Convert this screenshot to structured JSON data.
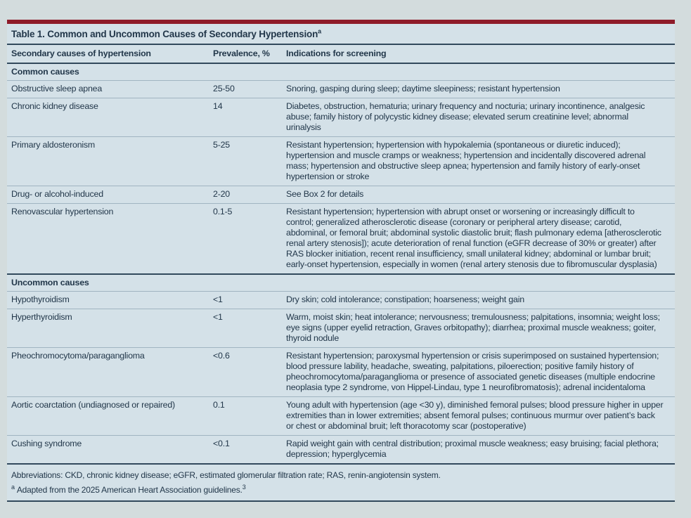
{
  "table": {
    "title": "Table 1. Common and Uncommon Causes of Secondary Hypertension",
    "title_superscript": "a",
    "columns": [
      "Secondary causes of hypertension",
      "Prevalence, %",
      "Indications for screening"
    ],
    "sections": [
      {
        "label": "Common causes",
        "rows": [
          {
            "cause": "Obstructive sleep apnea",
            "prevalence": "25-50",
            "indications": "Snoring, gasping during sleep; daytime sleepiness; resistant hypertension"
          },
          {
            "cause": "Chronic kidney disease",
            "prevalence": "14",
            "indications": "Diabetes, obstruction, hematuria; urinary frequency and nocturia; urinary incontinence, analgesic abuse; family history of polycystic kidney disease; elevated serum creatinine level; abnormal urinalysis"
          },
          {
            "cause": "Primary aldosteronism",
            "prevalence": "5-25",
            "indications": "Resistant hypertension; hypertension with hypokalemia (spontaneous or diuretic induced); hypertension and muscle cramps or weakness; hypertension and incidentally discovered adrenal mass; hypertension and obstructive sleep apnea; hypertension and family history of early-onset hypertension or stroke"
          },
          {
            "cause": "Drug- or alcohol-induced",
            "prevalence": "2-20",
            "indications": "See Box 2 for details"
          },
          {
            "cause": "Renovascular hypertension",
            "prevalence": "0.1-5",
            "indications": "Resistant hypertension; hypertension with abrupt onset or worsening or increasingly difficult to control; generalized atherosclerotic disease (coronary or peripheral artery disease; carotid, abdominal, or femoral bruit; abdominal systolic diastolic bruit; flash pulmonary edema [atherosclerotic renal artery stenosis]); acute deterioration of renal function (eGFR decrease of 30% or greater) after RAS blocker initiation, recent renal insufficiency, small unilateral kidney; abdominal or lumbar bruit; early-onset hypertension, especially in women (renal artery stenosis due to fibromuscular dysplasia)"
          }
        ]
      },
      {
        "label": "Uncommon causes",
        "rows": [
          {
            "cause": "Hypothyroidism",
            "prevalence": "<1",
            "indications": "Dry skin; cold intolerance; constipation; hoarseness; weight gain"
          },
          {
            "cause": "Hyperthyroidism",
            "prevalence": "<1",
            "indications": "Warm, moist skin; heat intolerance; nervousness; tremulousness; palpitations, insomnia; weight loss; eye signs (upper eyelid retraction, Graves orbitopathy); diarrhea; proximal muscle weakness; goiter, thyroid nodule"
          },
          {
            "cause": "Pheochromocytoma/paraganglioma",
            "prevalence": "<0.6",
            "indications": "Resistant hypertension; paroxysmal hypertension or crisis superimposed on sustained hypertension; blood pressure lability, headache, sweating, palpitations, piloerection; positive family history of pheochromocytoma/paraganglioma or presence of associated genetic diseases (multiple endocrine neoplasia type 2 syndrome, von Hippel-Lindau, type 1 neurofibromatosis); adrenal incidentaloma"
          },
          {
            "cause": "Aortic coarctation (undiagnosed or repaired)",
            "prevalence": "0.1",
            "indications": "Young adult with hypertension (age <30 y), diminished femoral pulses; blood pressure higher in upper extremities than in lower extremities; absent femoral pulses; continuous murmur over patient’s back or chest or abdominal bruit; left thoracotomy scar (postoperative)"
          },
          {
            "cause": "Cushing syndrome",
            "prevalence": "<0.1",
            "indications": "Rapid weight gain with central distribution; proximal muscle weakness; easy bruising; facial plethora; depression; hyperglycemia"
          }
        ]
      }
    ],
    "footnotes": {
      "abbreviations": "Abbreviations: CKD, chronic kidney disease; eGFR, estimated glomerular filtration rate; RAS, renin-angiotensin system.",
      "footnote_a_marker": "a",
      "footnote_a_text": "Adapted from the 2025 American Heart Association guidelines.",
      "footnote_a_reference": "3"
    },
    "colors": {
      "accent_bar": "#8e1b29",
      "table_background": "#d4e1e8",
      "page_background": "#d3dcdd",
      "rule_dark": "#31495c",
      "rule_light": "#a0b4c1",
      "text": "#22374a"
    }
  }
}
